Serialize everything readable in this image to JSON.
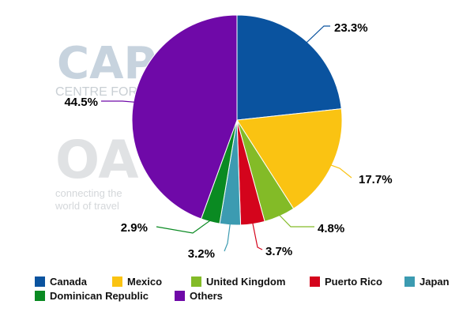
{
  "watermark": {
    "brand_top": "CAPA",
    "brand_sub": "CENTRE FOR AVIATION",
    "brand_mid": "OAG",
    "tagline_1": "connecting the",
    "tagline_2": "world of travel"
  },
  "chart_data": {
    "type": "pie",
    "categories": [
      "Canada",
      "Mexico",
      "United Kingdom",
      "Puerto Rico",
      "Japan",
      "Dominican Republic",
      "Others"
    ],
    "values": [
      23.3,
      17.7,
      4.8,
      3.7,
      3.2,
      2.9,
      44.5
    ],
    "labels": [
      "23.3%",
      "17.7%",
      "4.8%",
      "3.7%",
      "3.2%",
      "2.9%",
      "44.5%"
    ],
    "colors": [
      "#0a539f",
      "#fac312",
      "#83bb27",
      "#d4041c",
      "#3c9bb1",
      "#0a8a22",
      "#6f09a8"
    ],
    "start_angle": "12 o'clock",
    "direction": "clockwise",
    "legend_position": "bottom"
  }
}
